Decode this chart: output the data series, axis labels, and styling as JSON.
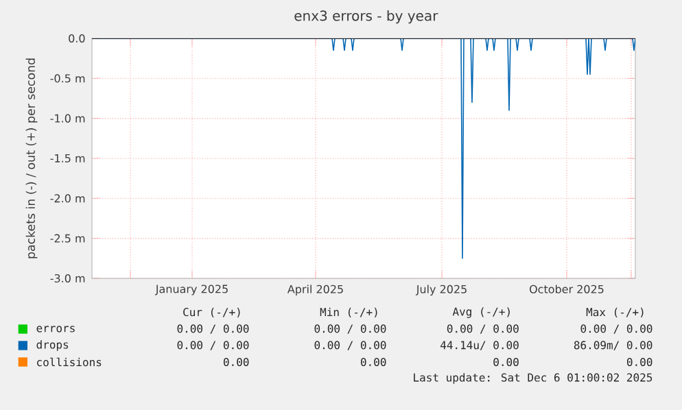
{
  "chart_data": {
    "type": "line",
    "title": "enx3 errors - by year",
    "ylabel": "packets in (-) / out (+) per second",
    "xlim": [
      "2024-11-03",
      "2025-12-04"
    ],
    "ylim": [
      -3.0,
      0.0
    ],
    "xticks": [
      {
        "value": "2024-12-01",
        "label": null
      },
      {
        "value": "2025-01-15",
        "label": "January 2025"
      },
      {
        "value": "2025-04-15",
        "label": "April 2025"
      },
      {
        "value": "2025-07-16",
        "label": "July 2025"
      },
      {
        "value": "2025-10-15",
        "label": "October 2025"
      },
      {
        "value": "2025-12-01",
        "label": null
      }
    ],
    "yticks": [
      {
        "value": 0.0,
        "label": "0.0"
      },
      {
        "value": -0.5,
        "label": "-0.5 m"
      },
      {
        "value": -1.0,
        "label": "-1.0 m"
      },
      {
        "value": -1.5,
        "label": "-1.5 m"
      },
      {
        "value": -2.0,
        "label": "-2.0 m"
      },
      {
        "value": -2.5,
        "label": "-2.5 m"
      },
      {
        "value": -3.0,
        "label": "-3.0 m"
      }
    ],
    "grid": true,
    "legend": "bottom",
    "series": [
      {
        "name": "errors",
        "color": "#00cc00"
      },
      {
        "name": "drops",
        "color": "#0066b3",
        "x": [
          "2024-11-03",
          "2025-04-27",
          "2025-04-28",
          "2025-04-29",
          "2025-05-05",
          "2025-05-06",
          "2025-05-07",
          "2025-05-11",
          "2025-05-12",
          "2025-05-13",
          "2025-06-16",
          "2025-06-17",
          "2025-06-18",
          "2025-07-30",
          "2025-07-31",
          "2025-08-01",
          "2025-08-06",
          "2025-08-07",
          "2025-08-08",
          "2025-08-17",
          "2025-08-18",
          "2025-08-19",
          "2025-08-22",
          "2025-08-23",
          "2025-08-24",
          "2025-09-02",
          "2025-09-03",
          "2025-09-04",
          "2025-09-08",
          "2025-09-09",
          "2025-09-10",
          "2025-09-18",
          "2025-09-19",
          "2025-09-20",
          "2025-10-29",
          "2025-10-30",
          "2025-10-31",
          "2025-11-01",
          "2025-11-02",
          "2025-11-11",
          "2025-11-12",
          "2025-11-13",
          "2025-12-02",
          "2025-12-03",
          "2025-12-04"
        ],
        "values": [
          0,
          0,
          -0.15,
          0,
          0,
          -0.15,
          0,
          0,
          -0.15,
          0,
          0,
          -0.15,
          0,
          0,
          -2.75,
          0,
          0,
          -0.8,
          0,
          0,
          -0.15,
          0,
          0,
          -0.15,
          0,
          0,
          -0.9,
          0,
          0,
          -0.15,
          0,
          0,
          -0.15,
          0,
          0,
          -0.45,
          0,
          -0.45,
          0,
          0,
          -0.15,
          0,
          0,
          -0.15,
          0
        ]
      },
      {
        "name": "collisions",
        "color": "#ff8000"
      }
    ],
    "annotations": [
      "Cur (-/+)",
      "Min (-/+)",
      "Avg (-/+)",
      "Max (-/+)",
      "0.00 /  0.00",
      "0.00 /  0.00",
      "0.00 /  0.00",
      "0.00 /  0.00",
      "0.00 /  0.00",
      "0.00 /  0.00",
      "44.14u/  0.00",
      "86.09m/  0.00",
      "0.00",
      "0.00",
      "0.00",
      "0.00",
      "Last update: Sat Dec  6 01:00:02 2025"
    ]
  }
}
